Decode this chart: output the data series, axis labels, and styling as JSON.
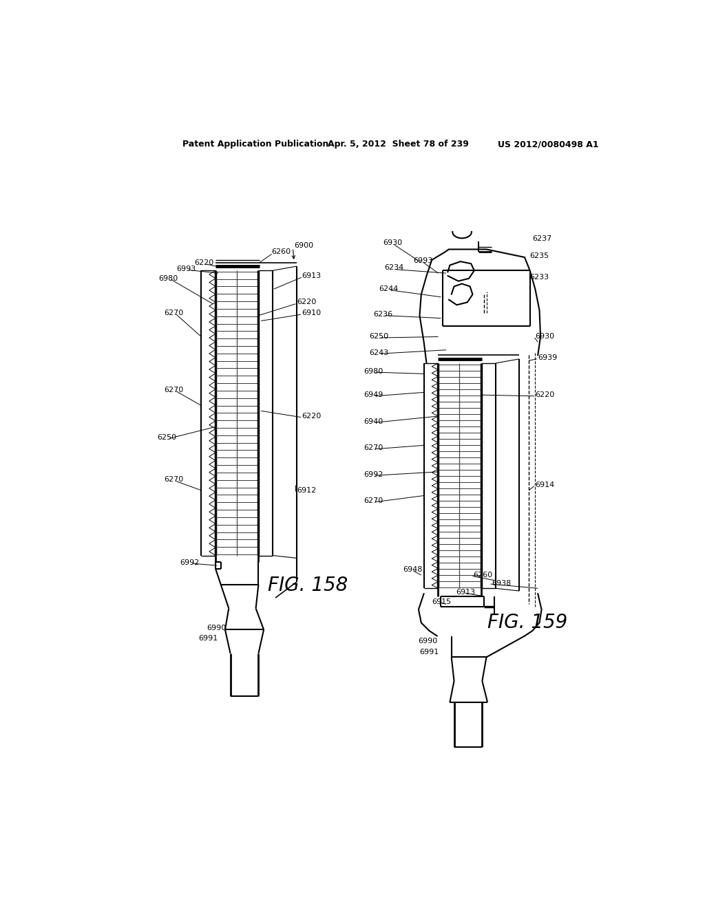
{
  "bg_color": "#ffffff",
  "header_left": "Patent Application Publication",
  "header_mid": "Apr. 5, 2012  Sheet 78 of 239",
  "header_right": "US 2012/0080498 A1"
}
